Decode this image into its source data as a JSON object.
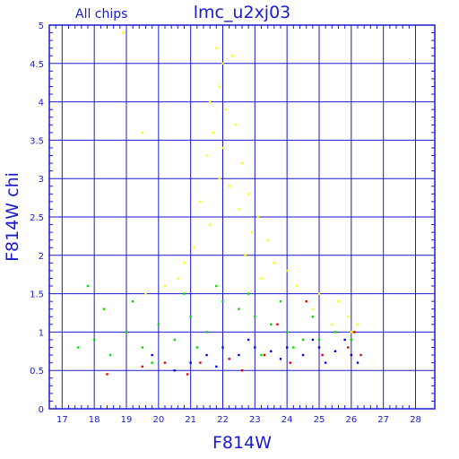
{
  "chart_data": {
    "type": "scatter",
    "title": "lmc_u2xj03",
    "subtitle": "All chips",
    "xlabel": "F814W",
    "ylabel": "F814W chi",
    "xlim": [
      16.6,
      28.6
    ],
    "ylim": [
      0,
      5
    ],
    "x_ticks": [
      "17",
      "18",
      "19",
      "20",
      "21",
      "22",
      "23",
      "24",
      "25",
      "26",
      "27",
      "28"
    ],
    "y_ticks": [
      "0",
      "0.5",
      "1",
      "1.5",
      "2",
      "2.5",
      "3",
      "3.5",
      "4",
      "4.5",
      "5"
    ],
    "grid": true,
    "series": [
      {
        "color": "#ffff00",
        "values": [
          [
            21.8,
            4.7
          ],
          [
            22.0,
            4.5
          ],
          [
            21.9,
            4.2
          ],
          [
            22.3,
            4.6
          ],
          [
            21.6,
            4.0
          ],
          [
            22.1,
            3.9
          ],
          [
            21.7,
            3.6
          ],
          [
            22.4,
            3.7
          ],
          [
            22.0,
            3.4
          ],
          [
            21.5,
            3.3
          ],
          [
            22.6,
            3.2
          ],
          [
            21.9,
            3.0
          ],
          [
            22.2,
            2.9
          ],
          [
            22.8,
            2.8
          ],
          [
            21.3,
            2.7
          ],
          [
            22.5,
            2.6
          ],
          [
            23.1,
            2.5
          ],
          [
            21.6,
            2.4
          ],
          [
            22.9,
            2.3
          ],
          [
            23.4,
            2.2
          ],
          [
            21.1,
            2.1
          ],
          [
            22.7,
            2.0
          ],
          [
            23.6,
            1.9
          ],
          [
            20.8,
            1.9
          ],
          [
            24.0,
            1.8
          ],
          [
            23.2,
            1.7
          ],
          [
            20.6,
            1.7
          ],
          [
            24.3,
            1.6
          ],
          [
            25.0,
            1.5
          ],
          [
            25.6,
            1.4
          ],
          [
            24.8,
            1.3
          ],
          [
            25.9,
            1.2
          ],
          [
            26.2,
            1.1
          ],
          [
            26.0,
            1.0
          ],
          [
            25.4,
            1.1
          ],
          [
            24.6,
            1.4
          ],
          [
            20.2,
            1.6
          ],
          [
            19.6,
            1.5
          ],
          [
            18.9,
            4.9
          ],
          [
            19.5,
            3.6
          ]
        ]
      },
      {
        "color": "#00dd00",
        "values": [
          [
            17.5,
            0.8
          ],
          [
            18.0,
            0.9
          ],
          [
            18.5,
            0.7
          ],
          [
            19.0,
            1.0
          ],
          [
            19.5,
            0.8
          ],
          [
            20.0,
            1.1
          ],
          [
            20.5,
            0.9
          ],
          [
            21.0,
            1.2
          ],
          [
            21.5,
            1.0
          ],
          [
            22.0,
            1.4
          ],
          [
            22.5,
            1.3
          ],
          [
            23.0,
            1.2
          ],
          [
            23.5,
            1.1
          ],
          [
            24.0,
            1.0
          ],
          [
            24.5,
            0.9
          ],
          [
            25.0,
            0.9
          ],
          [
            17.8,
            1.6
          ],
          [
            18.3,
            1.3
          ],
          [
            19.2,
            1.4
          ],
          [
            20.8,
            1.5
          ],
          [
            21.8,
            1.6
          ],
          [
            22.8,
            1.5
          ],
          [
            23.8,
            1.4
          ],
          [
            24.8,
            1.2
          ],
          [
            25.5,
            1.0
          ],
          [
            26.0,
            0.9
          ],
          [
            19.8,
            0.6
          ],
          [
            21.2,
            0.8
          ],
          [
            23.2,
            0.7
          ],
          [
            24.2,
            0.8
          ]
        ]
      },
      {
        "color": "#0000ee",
        "values": [
          [
            21.0,
            0.6
          ],
          [
            21.5,
            0.7
          ],
          [
            22.0,
            0.8
          ],
          [
            22.5,
            0.7
          ],
          [
            23.0,
            0.8
          ],
          [
            23.5,
            0.75
          ],
          [
            24.0,
            0.8
          ],
          [
            24.5,
            0.7
          ],
          [
            25.0,
            0.8
          ],
          [
            25.5,
            0.75
          ],
          [
            26.0,
            0.7
          ],
          [
            26.2,
            0.6
          ],
          [
            25.8,
            0.9
          ],
          [
            24.8,
            0.9
          ],
          [
            23.8,
            0.65
          ],
          [
            22.8,
            0.9
          ],
          [
            21.8,
            0.55
          ],
          [
            20.5,
            0.5
          ],
          [
            19.8,
            0.7
          ],
          [
            25.2,
            0.6
          ]
        ]
      },
      {
        "color": "#dd0000",
        "values": [
          [
            18.4,
            0.45
          ],
          [
            19.5,
            0.55
          ],
          [
            20.2,
            0.6
          ],
          [
            21.3,
            0.6
          ],
          [
            22.2,
            0.65
          ],
          [
            23.3,
            0.7
          ],
          [
            24.1,
            0.6
          ],
          [
            25.1,
            0.7
          ],
          [
            25.9,
            0.8
          ],
          [
            26.3,
            0.7
          ],
          [
            24.6,
            1.4
          ],
          [
            23.7,
            1.1
          ],
          [
            26.1,
            1.0
          ],
          [
            22.6,
            0.5
          ],
          [
            20.9,
            0.45
          ]
        ]
      }
    ]
  }
}
